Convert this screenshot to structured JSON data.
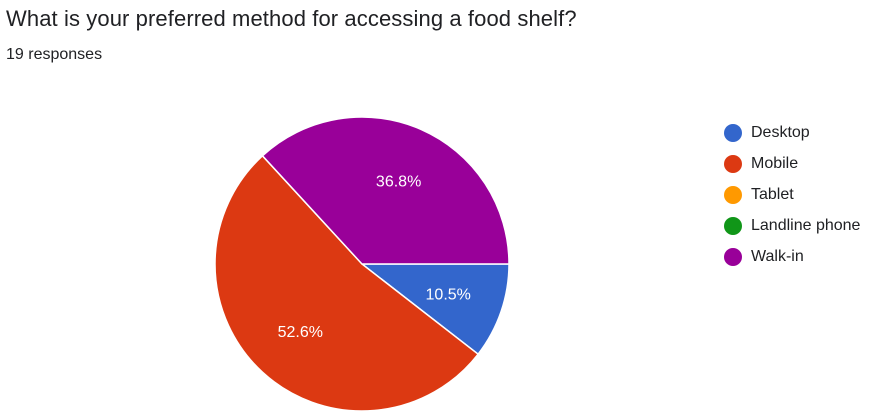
{
  "question": {
    "title": "What is your preferred method for accessing a food shelf?",
    "responses": "19 responses"
  },
  "chart_data": {
    "type": "pie",
    "title": "What is your preferred method for accessing a food shelf?",
    "subtitle": "19 responses",
    "slices": [
      {
        "name": "Desktop",
        "percent": 10.5,
        "label": "10.5%",
        "color": "#3366cc"
      },
      {
        "name": "Mobile",
        "percent": 52.6,
        "label": "52.6%",
        "color": "#dc3912"
      },
      {
        "name": "Tablet",
        "percent": 0,
        "label": "",
        "color": "#ff9900"
      },
      {
        "name": "Landline phone",
        "percent": 0,
        "label": "",
        "color": "#109618"
      },
      {
        "name": "Walk-in",
        "percent": 36.8,
        "label": "36.8%",
        "color": "#990099"
      }
    ],
    "legend_position": "right"
  }
}
